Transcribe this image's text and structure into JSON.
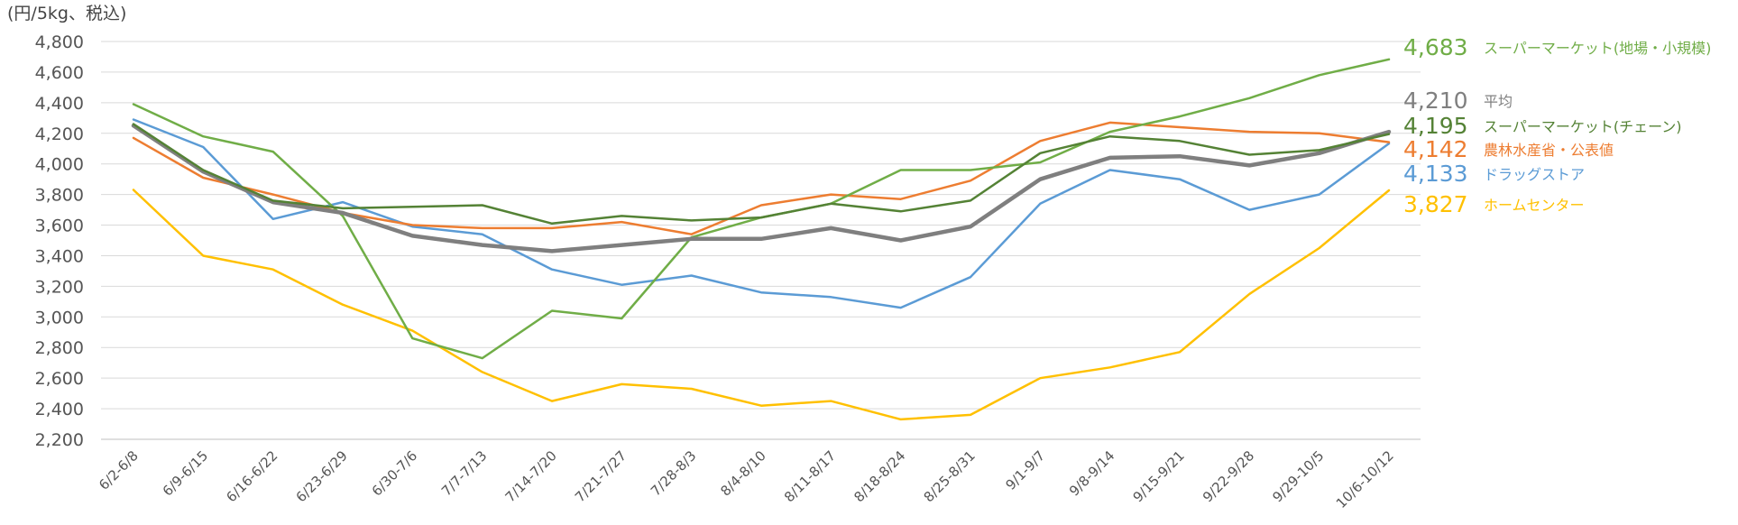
{
  "chart_data": {
    "type": "line",
    "title": "",
    "unit_label": "(円/5kg、税込)",
    "xlabel": "",
    "ylabel": "",
    "ylim": [
      2200,
      4800
    ],
    "yticks": [
      2200,
      2400,
      2600,
      2800,
      3000,
      3200,
      3400,
      3600,
      3800,
      4000,
      4200,
      4400,
      4600,
      4800
    ],
    "grid": true,
    "legend": "right-end labels",
    "categories": [
      "6/2-6/8",
      "6/9-6/15",
      "6/16-6/22",
      "6/23-6/29",
      "6/30-7/6",
      "7/7-7/13",
      "7/14-7/20",
      "7/21-7/27",
      "7/28-8/3",
      "8/4-8/10",
      "8/11-8/17",
      "8/18-8/24",
      "8/25-8/31",
      "9/1-9/7",
      "9/8-9/14",
      "9/15-9/21",
      "9/22-9/28",
      "9/29-10/5",
      "10/6-10/12"
    ],
    "series": [
      {
        "name": "スーパーマーケット(地場・小規模)",
        "end_label": "4,683",
        "color": "#70ad47",
        "width": 2.5,
        "values": [
          4390,
          4180,
          4080,
          3660,
          2860,
          2730,
          3040,
          2990,
          3520,
          3650,
          3740,
          3960,
          3960,
          4010,
          4210,
          4310,
          4430,
          4580,
          4683
        ]
      },
      {
        "name": "平均",
        "end_label": "4,210",
        "color": "#7f7f7f",
        "width": 4.5,
        "values": [
          4250,
          3950,
          3750,
          3680,
          3530,
          3470,
          3430,
          3470,
          3510,
          3510,
          3580,
          3500,
          3590,
          3900,
          4040,
          4050,
          3990,
          4070,
          4210
        ]
      },
      {
        "name": "スーパーマーケット(チェーン)",
        "end_label": "4,195",
        "color": "#548235",
        "width": 2.5,
        "values": [
          4260,
          3960,
          3760,
          3710,
          3720,
          3730,
          3610,
          3660,
          3630,
          3650,
          3740,
          3690,
          3760,
          4070,
          4180,
          4150,
          4060,
          4090,
          4195
        ]
      },
      {
        "name": "農林水産省・公表値",
        "end_label": "4,142",
        "color": "#ed7d31",
        "width": 2.5,
        "values": [
          4170,
          3910,
          3800,
          3680,
          3600,
          3580,
          3580,
          3620,
          3540,
          3730,
          3800,
          3770,
          3890,
          4150,
          4270,
          4240,
          4210,
          4200,
          4142
        ]
      },
      {
        "name": "ドラッグストア",
        "end_label": "4,133",
        "color": "#5b9bd5",
        "width": 2.5,
        "values": [
          4290,
          4110,
          3640,
          3750,
          3590,
          3540,
          3310,
          3210,
          3270,
          3160,
          3130,
          3060,
          3260,
          3740,
          3960,
          3900,
          3700,
          3800,
          4133
        ]
      },
      {
        "name": "ホームセンター",
        "end_label": "3,827",
        "color": "#ffc000",
        "width": 2.5,
        "values": [
          3830,
          3400,
          3310,
          3080,
          2910,
          2640,
          2450,
          2560,
          2530,
          2420,
          2450,
          2330,
          2360,
          2600,
          2670,
          2770,
          3150,
          3450,
          3827
        ]
      }
    ]
  }
}
